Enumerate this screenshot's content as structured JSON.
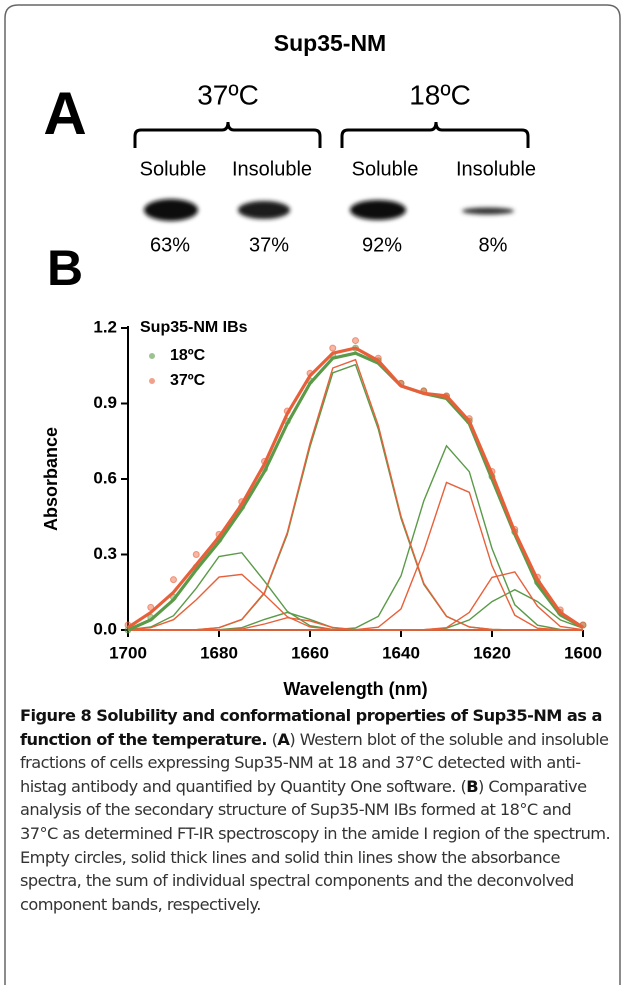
{
  "panel_a": {
    "title": "Sup35-NM",
    "label": "A",
    "groups": [
      {
        "temperature": "37ºC",
        "fractions": [
          {
            "name": "Soluble",
            "percent": "63%"
          },
          {
            "name": "Insoluble",
            "percent": "37%"
          }
        ]
      },
      {
        "temperature": "18ºC",
        "fractions": [
          {
            "name": "Soluble",
            "percent": "92%"
          },
          {
            "name": "Insoluble",
            "percent": "8%"
          }
        ]
      }
    ]
  },
  "panel_b_label": "B",
  "chart_data": {
    "type": "scatter",
    "legend_title": "Sup35-NM IBs",
    "legend": "upper-left",
    "x_label": "Wavelength (nm)",
    "y_label": "Absorbance",
    "xlim": [
      1700,
      1600
    ],
    "xticks": [
      1700,
      1680,
      1660,
      1640,
      1620,
      1600
    ],
    "ylim": [
      0,
      1.2
    ],
    "yticks": [
      {
        "value": 0,
        "label": "0.0"
      },
      0.3,
      0.6,
      0.9,
      1.2
    ],
    "x": [
      1700,
      1695,
      1690,
      1685,
      1680,
      1675,
      1670,
      1665,
      1660,
      1655,
      1650,
      1645,
      1640,
      1635,
      1630,
      1625,
      1620,
      1615,
      1610,
      1605,
      1600
    ],
    "series": [
      {
        "name": "18ºC",
        "color": "#5a9a48",
        "values": [
          0.0,
          0.05,
          0.13,
          0.25,
          0.36,
          0.49,
          0.64,
          0.83,
          0.99,
          1.09,
          1.12,
          1.07,
          0.98,
          0.95,
          0.93,
          0.83,
          0.61,
          0.39,
          0.19,
          0.07,
          0.02
        ],
        "sum": [
          0.0,
          0.04,
          0.12,
          0.24,
          0.35,
          0.48,
          0.63,
          0.82,
          0.98,
          1.08,
          1.1,
          1.06,
          0.97,
          0.94,
          0.92,
          0.82,
          0.6,
          0.38,
          0.18,
          0.06,
          0.01
        ],
        "components": [
          [
            0.001,
            0.012,
            0.057,
            0.166,
            0.292,
            0.307,
            0.194,
            0.074,
            0.017,
            0.002,
            0,
            0,
            0,
            0,
            0,
            0,
            0,
            0,
            0,
            0,
            0
          ],
          [
            0,
            0,
            0,
            0,
            0.001,
            0.009,
            0.042,
            0.07,
            0.042,
            0.009,
            0.001,
            0,
            0,
            0,
            0,
            0,
            0,
            0,
            0,
            0,
            0
          ],
          [
            0,
            0,
            0,
            0.001,
            0.009,
            0.041,
            0.146,
            0.38,
            0.728,
            1.022,
            1.054,
            0.798,
            0.444,
            0.181,
            0.054,
            0.012,
            0.002,
            0,
            0,
            0,
            0
          ],
          [
            0,
            0,
            0,
            0,
            0,
            0,
            0,
            0,
            0,
            0.001,
            0.008,
            0.054,
            0.215,
            0.513,
            0.732,
            0.629,
            0.324,
            0.1,
            0.019,
            0.002,
            0
          ],
          [
            0,
            0,
            0,
            0,
            0,
            0,
            0,
            0,
            0,
            0,
            0,
            0,
            0,
            0.001,
            0.007,
            0.04,
            0.113,
            0.16,
            0.113,
            0.04,
            0.007
          ]
        ]
      },
      {
        "name": "37ºC",
        "color": "#e8603a",
        "values": [
          0.02,
          0.09,
          0.2,
          0.3,
          0.38,
          0.51,
          0.67,
          0.87,
          1.02,
          1.12,
          1.15,
          1.08,
          0.98,
          0.95,
          0.93,
          0.84,
          0.63,
          0.4,
          0.21,
          0.08,
          0.02
        ],
        "sum": [
          0.01,
          0.07,
          0.15,
          0.26,
          0.37,
          0.5,
          0.66,
          0.86,
          1.01,
          1.1,
          1.12,
          1.07,
          0.97,
          0.94,
          0.93,
          0.83,
          0.62,
          0.39,
          0.2,
          0.07,
          0.01
        ],
        "components": [
          [
            0.001,
            0.009,
            0.041,
            0.12,
            0.21,
            0.221,
            0.14,
            0.053,
            0.012,
            0.002,
            0,
            0,
            0,
            0,
            0,
            0,
            0,
            0,
            0,
            0,
            0
          ],
          [
            0,
            0,
            0,
            0,
            0,
            0.004,
            0.024,
            0.049,
            0.036,
            0.01,
            0.001,
            0,
            0,
            0,
            0,
            0,
            0,
            0,
            0,
            0,
            0
          ],
          [
            0,
            0,
            0,
            0.001,
            0.009,
            0.042,
            0.149,
            0.387,
            0.741,
            1.041,
            1.074,
            0.813,
            0.452,
            0.185,
            0.055,
            0.012,
            0.002,
            0,
            0,
            0,
            0
          ],
          [
            0,
            0,
            0,
            0,
            0,
            0,
            0,
            0,
            0,
            0,
            0.001,
            0.011,
            0.084,
            0.314,
            0.586,
            0.547,
            0.255,
            0.059,
            0.007,
            0.001,
            0
          ],
          [
            0,
            0,
            0,
            0,
            0,
            0,
            0,
            0,
            0,
            0,
            0,
            0,
            0,
            0.001,
            0.009,
            0.07,
            0.209,
            0.231,
            0.094,
            0.014,
            0.001
          ]
        ]
      }
    ]
  },
  "caption": {
    "title": "Figure 8 Solubility and conformational properties of Sup35-NM as a function of the temperature.",
    "body": [
      "(",
      "A",
      ") Western blot of the soluble and insoluble fractions of cells expressing Sup35-NM at 18 and 37°C detected with anti-histag antibody and quantified by Quantity One software. (",
      "B",
      ") Comparative analysis of the secondary structure of Sup35-NM IBs formed at 18°C and 37°C as determined FT-IR spectroscopy in the amide I region of the spectrum. Empty circles, solid thick lines and solid thin lines show the absorbance spectra, the sum of individual spectral components and the deconvolved component bands, respectively."
    ]
  }
}
